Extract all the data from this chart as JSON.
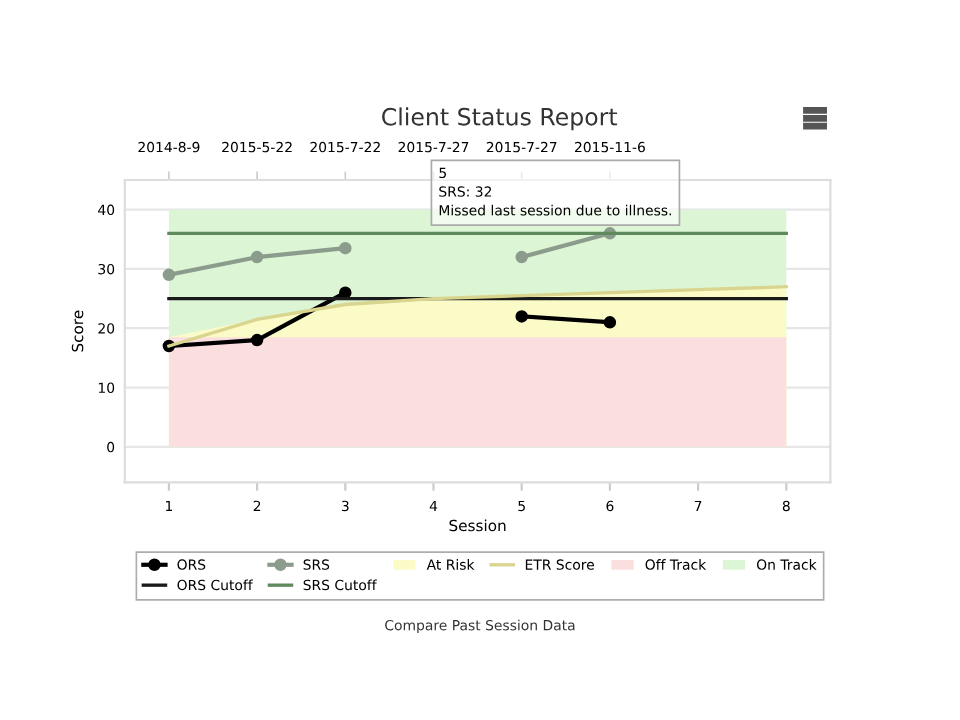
{
  "chart_data": {
    "type": "line",
    "title": "Client Status Report",
    "xlabel": "Session",
    "ylabel": "Score",
    "x": [
      1,
      2,
      3,
      4,
      5,
      6,
      7,
      8
    ],
    "xlim": [
      0.5,
      8.5
    ],
    "xticks": [
      1,
      2,
      3,
      4,
      5,
      6,
      7,
      8
    ],
    "ylim": [
      -6,
      45
    ],
    "yticks": [
      0,
      10,
      20,
      30,
      40
    ],
    "grid": "y",
    "legend": "bottom",
    "series": [
      {
        "name": "ORS",
        "color": "#000000",
        "marker": "circle",
        "values": [
          17,
          18,
          26,
          null,
          22,
          21,
          null,
          null
        ]
      },
      {
        "name": "ORS Cutoff",
        "color": "#1a1a1a",
        "values": [
          25,
          25,
          25,
          25,
          25,
          25,
          25,
          25
        ]
      },
      {
        "name": "SRS",
        "color": "#8c9c8c",
        "marker": "circle",
        "values": [
          29,
          32,
          33.5,
          null,
          32,
          36,
          null,
          null
        ]
      },
      {
        "name": "SRS Cutoff",
        "color": "#5e8a5e",
        "values": [
          36,
          36,
          36,
          36,
          36,
          36,
          36,
          36
        ]
      },
      {
        "name": "At Risk",
        "type": "area",
        "color": "#fbfbc8",
        "values": [
          18.5,
          21.5,
          24,
          25,
          25.5,
          26,
          26.5,
          27
        ]
      },
      {
        "name": "ETR Score",
        "color": "#d9d58e",
        "values": [
          17,
          21.5,
          24,
          25,
          25.5,
          26,
          26.5,
          27
        ]
      },
      {
        "name": "Off Track",
        "type": "area",
        "color": "#fbdede",
        "values": [
          18.5,
          18.5,
          18.5,
          18.5,
          18.5,
          18.5,
          18.5,
          18.5
        ]
      },
      {
        "name": "On Track",
        "type": "area",
        "color": "#dcf5d4",
        "values": [
          40,
          40,
          40,
          40,
          40,
          40,
          40,
          40
        ]
      }
    ],
    "annotations": [
      "2014-8-9",
      "2015-5-22",
      "2015-7-22",
      "2015-7-27",
      "2015-7-27",
      "2015-11-6",
      {
        "text": "5\nSRS: 32\nMissed last session due to illness.",
        "x": 5,
        "y": 32
      },
      "Compare Past Session Data"
    ]
  }
}
